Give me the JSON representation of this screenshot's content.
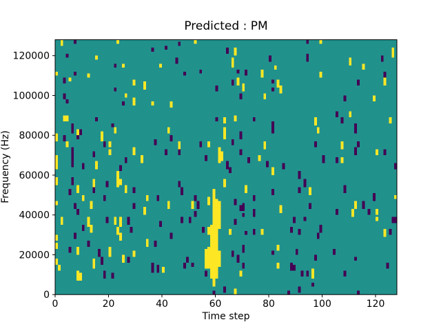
{
  "chart_data": {
    "type": "heatmap",
    "title": "Predicted : PM",
    "xlabel": "Time step",
    "ylabel": "Frequency (Hz)",
    "x_range": [
      0,
      128
    ],
    "y_range_hz": [
      0,
      128000
    ],
    "n_time_steps": 128,
    "n_freq_bins": 128,
    "hz_per_bin": 1000,
    "x_ticks": [
      0,
      20,
      40,
      60,
      80,
      100,
      120
    ],
    "y_ticks": [
      0,
      20000,
      40000,
      60000,
      80000,
      100000,
      120000
    ],
    "grid": false,
    "legend": "none",
    "colors": {
      "background_mid": "#21918c",
      "high": "#fde725",
      "low": "#440154",
      "frame": "#000000",
      "text": "#000000"
    },
    "cells_format": "[time_step, freq_bin_start, freq_bin_end, y=yellow|p=purple]",
    "cells": [
      [
        2,
        125,
        127,
        "y"
      ],
      [
        7,
        126,
        127,
        "p"
      ],
      [
        23,
        126,
        127,
        "y"
      ],
      [
        36,
        122,
        123,
        "p"
      ],
      [
        41,
        123,
        124,
        "p"
      ],
      [
        4,
        119,
        120,
        "p"
      ],
      [
        15,
        118,
        119,
        "y"
      ],
      [
        22,
        114,
        115,
        "p"
      ],
      [
        25,
        114,
        115,
        "y"
      ],
      [
        39,
        114,
        115,
        "y"
      ],
      [
        0,
        110,
        111,
        "y"
      ],
      [
        7,
        110,
        111,
        "p"
      ],
      [
        12,
        109,
        110,
        "y"
      ],
      [
        3,
        106,
        108,
        "p"
      ],
      [
        5,
        107,
        108,
        "y"
      ],
      [
        29,
        105,
        107,
        "y"
      ],
      [
        33,
        103,
        106,
        "y"
      ],
      [
        22,
        102,
        103,
        "p"
      ],
      [
        3,
        98,
        100,
        "p"
      ],
      [
        26,
        99,
        100,
        "y"
      ],
      [
        29,
        95,
        98,
        "y"
      ],
      [
        25,
        95,
        96,
        "p"
      ],
      [
        36,
        95,
        96,
        "y"
      ],
      [
        4,
        96,
        97,
        "p"
      ],
      [
        43,
        94,
        96,
        "y"
      ],
      [
        3,
        87,
        89,
        "y"
      ],
      [
        4,
        87,
        89,
        "y"
      ],
      [
        15,
        87,
        88,
        "p"
      ],
      [
        6,
        84,
        85,
        "p"
      ],
      [
        21,
        84,
        85,
        "p"
      ],
      [
        46,
        125,
        126,
        "p"
      ],
      [
        52,
        126,
        127,
        "y"
      ],
      [
        64,
        121,
        123,
        "p"
      ],
      [
        67,
        120,
        123,
        "y"
      ],
      [
        45,
        116,
        118,
        "p"
      ],
      [
        66,
        114,
        118,
        "y"
      ],
      [
        80,
        117,
        119,
        "p"
      ],
      [
        82,
        113,
        114,
        "y"
      ],
      [
        48,
        110,
        111,
        "p"
      ],
      [
        54,
        111,
        112,
        "p"
      ],
      [
        68,
        111,
        112,
        "p"
      ],
      [
        77,
        109,
        112,
        "y"
      ],
      [
        71,
        110,
        112,
        "p"
      ],
      [
        66,
        105,
        107,
        "p"
      ],
      [
        68,
        105,
        108,
        "y"
      ],
      [
        81,
        106,
        107,
        "p"
      ],
      [
        83,
        104,
        107,
        "y"
      ],
      [
        81,
        102,
        103,
        "p"
      ],
      [
        84,
        101,
        104,
        "y"
      ],
      [
        60,
        102,
        104,
        "p"
      ],
      [
        70,
        102,
        105,
        "y"
      ],
      [
        69,
        98,
        100,
        "p"
      ],
      [
        78,
        98,
        100,
        "y"
      ],
      [
        60,
        87,
        88,
        "p"
      ],
      [
        63,
        86,
        88,
        "y"
      ],
      [
        67,
        87,
        89,
        "y"
      ],
      [
        74,
        87,
        88,
        "p"
      ],
      [
        81,
        84,
        86,
        "p"
      ],
      [
        94,
        126,
        127,
        "p"
      ],
      [
        99,
        126,
        127,
        "y"
      ],
      [
        126,
        119,
        123,
        "y"
      ],
      [
        94,
        117,
        120,
        "p"
      ],
      [
        110,
        115,
        118,
        "y"
      ],
      [
        122,
        117,
        119,
        "p"
      ],
      [
        115,
        113,
        115,
        "y"
      ],
      [
        99,
        109,
        111,
        "y"
      ],
      [
        123,
        109,
        111,
        "p"
      ],
      [
        113,
        105,
        107,
        "p"
      ],
      [
        123,
        105,
        108,
        "y"
      ],
      [
        108,
        97,
        99,
        "p"
      ],
      [
        119,
        97,
        99,
        "y"
      ],
      [
        105,
        89,
        91,
        "p"
      ],
      [
        107,
        86,
        88,
        "p"
      ],
      [
        110,
        89,
        91,
        "y"
      ],
      [
        97,
        85,
        88,
        "y"
      ],
      [
        125,
        86,
        88,
        "y"
      ],
      [
        112,
        84,
        85,
        "p"
      ],
      [
        6,
        81,
        83,
        "p"
      ],
      [
        8,
        80,
        82,
        "y"
      ],
      [
        9,
        80,
        82,
        "p"
      ],
      [
        22,
        81,
        83,
        "y"
      ],
      [
        0,
        77,
        80,
        "y"
      ],
      [
        3,
        77,
        79,
        "p"
      ],
      [
        4,
        74,
        76,
        "y"
      ],
      [
        8,
        78,
        79,
        "p"
      ],
      [
        17,
        77,
        81,
        "y"
      ],
      [
        18,
        74,
        76,
        "p"
      ],
      [
        20,
        74,
        76,
        "y"
      ],
      [
        37,
        75,
        77,
        "p"
      ],
      [
        42,
        81,
        83,
        "y"
      ],
      [
        43,
        77,
        79,
        "p"
      ],
      [
        6,
        64,
        73,
        "p"
      ],
      [
        0,
        63,
        69,
        "y"
      ],
      [
        14,
        69,
        71,
        "p"
      ],
      [
        20,
        70,
        72,
        "y"
      ],
      [
        29,
        70,
        73,
        "y"
      ],
      [
        26,
        66,
        68,
        "p"
      ],
      [
        32,
        66,
        69,
        "y"
      ],
      [
        41,
        70,
        72,
        "p"
      ],
      [
        10,
        63,
        65,
        "p"
      ],
      [
        15,
        63,
        66,
        "y"
      ],
      [
        24,
        62,
        64,
        "p"
      ],
      [
        23,
        59,
        61,
        "y"
      ],
      [
        0,
        55,
        58,
        "y"
      ],
      [
        6,
        55,
        58,
        "p"
      ],
      [
        14,
        54,
        57,
        "y"
      ],
      [
        23,
        54,
        58,
        "y"
      ],
      [
        24,
        55,
        57,
        "y"
      ],
      [
        19,
        54,
        56,
        "p"
      ],
      [
        26,
        51,
        54,
        "y"
      ],
      [
        29,
        51,
        53,
        "p"
      ],
      [
        8,
        51,
        54,
        "y"
      ],
      [
        5,
        50,
        52,
        "p"
      ],
      [
        14,
        51,
        53,
        "p"
      ],
      [
        10,
        47,
        49,
        "y"
      ],
      [
        18,
        47,
        49,
        "p"
      ],
      [
        34,
        47,
        49,
        "y"
      ],
      [
        38,
        47,
        49,
        "p"
      ],
      [
        42,
        43,
        46,
        "y"
      ],
      [
        29,
        43,
        45,
        "p"
      ],
      [
        13,
        43,
        46,
        "y"
      ],
      [
        7,
        43,
        45,
        "p"
      ],
      [
        8,
        40,
        42,
        "p"
      ],
      [
        33,
        40,
        43,
        "y"
      ],
      [
        0,
        45,
        46,
        "y"
      ],
      [
        63,
        78,
        83,
        "y"
      ],
      [
        81,
        81,
        83,
        "p"
      ],
      [
        46,
        73,
        76,
        "y"
      ],
      [
        54,
        74,
        76,
        "p"
      ],
      [
        57,
        74,
        76,
        "y"
      ],
      [
        69,
        78,
        81,
        "p"
      ],
      [
        66,
        75,
        77,
        "p"
      ],
      [
        78,
        73,
        76,
        "y"
      ],
      [
        46,
        70,
        72,
        "p"
      ],
      [
        61,
        66,
        73,
        "y"
      ],
      [
        62,
        67,
        71,
        "y"
      ],
      [
        56,
        67,
        69,
        "p"
      ],
      [
        69,
        70,
        72,
        "p"
      ],
      [
        72,
        66,
        68,
        "p"
      ],
      [
        76,
        67,
        69,
        "y"
      ],
      [
        79,
        64,
        66,
        "p"
      ],
      [
        64,
        63,
        66,
        "p"
      ],
      [
        65,
        61,
        63,
        "p"
      ],
      [
        81,
        60,
        63,
        "y"
      ],
      [
        85,
        63,
        65,
        "p"
      ],
      [
        63,
        54,
        57,
        "y"
      ],
      [
        46,
        54,
        56,
        "p"
      ],
      [
        47,
        50,
        53,
        "p"
      ],
      [
        71,
        51,
        54,
        "y"
      ],
      [
        74,
        47,
        49,
        "p"
      ],
      [
        81,
        50,
        52,
        "p"
      ],
      [
        59,
        48,
        52,
        "y"
      ],
      [
        52,
        47,
        49,
        "p"
      ],
      [
        53,
        43,
        46,
        "p"
      ],
      [
        51,
        43,
        46,
        "y"
      ],
      [
        57,
        45,
        48,
        "y"
      ],
      [
        70,
        42,
        45,
        "p"
      ],
      [
        84,
        41,
        44,
        "y"
      ],
      [
        74,
        39,
        42,
        "p"
      ],
      [
        52,
        39,
        41,
        "p"
      ],
      [
        98,
        81,
        83,
        "y"
      ],
      [
        112,
        81,
        83,
        "p"
      ],
      [
        97,
        74,
        76,
        "p"
      ],
      [
        107,
        73,
        76,
        "y"
      ],
      [
        113,
        74,
        76,
        "p"
      ],
      [
        112,
        70,
        73,
        "p"
      ],
      [
        120,
        70,
        72,
        "y"
      ],
      [
        123,
        70,
        72,
        "p"
      ],
      [
        100,
        66,
        69,
        "p"
      ],
      [
        105,
        66,
        68,
        "p"
      ],
      [
        107,
        66,
        68,
        "y"
      ],
      [
        91,
        58,
        61,
        "p"
      ],
      [
        93,
        54,
        57,
        "p"
      ],
      [
        91,
        51,
        53,
        "p"
      ],
      [
        95,
        50,
        53,
        "y"
      ],
      [
        108,
        51,
        54,
        "p"
      ],
      [
        119,
        47,
        50,
        "p"
      ],
      [
        115,
        43,
        46,
        "p"
      ],
      [
        112,
        43,
        46,
        "y"
      ],
      [
        95,
        43,
        45,
        "p"
      ],
      [
        117,
        40,
        42,
        "p"
      ],
      [
        120,
        40,
        42,
        "y"
      ],
      [
        105,
        40,
        42,
        "p"
      ],
      [
        111,
        39,
        42,
        "y"
      ],
      [
        127,
        63,
        65,
        "p"
      ],
      [
        127,
        48,
        49,
        "y"
      ],
      [
        2,
        35,
        38,
        "y"
      ],
      [
        12,
        34,
        38,
        "y"
      ],
      [
        19,
        36,
        38,
        "p"
      ],
      [
        22,
        35,
        38,
        "y"
      ],
      [
        24,
        34,
        38,
        "y"
      ],
      [
        27,
        35,
        38,
        "p"
      ],
      [
        39,
        34,
        36,
        "p"
      ],
      [
        10,
        32,
        34,
        "p"
      ],
      [
        13,
        31,
        34,
        "y"
      ],
      [
        23,
        30,
        33,
        "y"
      ],
      [
        28,
        31,
        33,
        "p"
      ],
      [
        7,
        28,
        30,
        "p"
      ],
      [
        24,
        27,
        30,
        "y"
      ],
      [
        43,
        28,
        30,
        "p"
      ],
      [
        34,
        24,
        27,
        "y"
      ],
      [
        37,
        24,
        26,
        "p"
      ],
      [
        0,
        27,
        29,
        "y"
      ],
      [
        0,
        23,
        25,
        "y"
      ],
      [
        5,
        21,
        23,
        "p"
      ],
      [
        8,
        20,
        23,
        "y"
      ],
      [
        12,
        24,
        26,
        "p"
      ],
      [
        20,
        19,
        23,
        "y"
      ],
      [
        16,
        19,
        22,
        "p"
      ],
      [
        25,
        16,
        19,
        "y"
      ],
      [
        17,
        15,
        18,
        "p"
      ],
      [
        14,
        13,
        17,
        "y"
      ],
      [
        27,
        16,
        18,
        "p"
      ],
      [
        29,
        19,
        21,
        "y"
      ],
      [
        1,
        12,
        14,
        "y"
      ],
      [
        0,
        15,
        17,
        "y"
      ],
      [
        36,
        11,
        15,
        "p"
      ],
      [
        38,
        11,
        14,
        "p"
      ],
      [
        40,
        11,
        13,
        "y"
      ],
      [
        8,
        7,
        11,
        "y"
      ],
      [
        9,
        7,
        10,
        "y"
      ],
      [
        18,
        8,
        11,
        "p"
      ],
      [
        21,
        8,
        10,
        "p"
      ],
      [
        47,
        36,
        38,
        "p"
      ],
      [
        50,
        36,
        38,
        "p"
      ],
      [
        57,
        30,
        33,
        "y"
      ],
      [
        58,
        26,
        34,
        "y"
      ],
      [
        59,
        24,
        47,
        "y"
      ],
      [
        60,
        23,
        47,
        "y"
      ],
      [
        61,
        33,
        46,
        "y"
      ],
      [
        56,
        13,
        22,
        "y"
      ],
      [
        57,
        13,
        23,
        "y"
      ],
      [
        58,
        8,
        25,
        "y"
      ],
      [
        59,
        4,
        23,
        "y"
      ],
      [
        60,
        8,
        22,
        "y"
      ],
      [
        61,
        14,
        21,
        "y"
      ],
      [
        67,
        45,
        47,
        "p"
      ],
      [
        69,
        42,
        44,
        "p"
      ],
      [
        70,
        39,
        40,
        "p"
      ],
      [
        67,
        35,
        37,
        "p"
      ],
      [
        55,
        31,
        33,
        "p"
      ],
      [
        65,
        30,
        32,
        "y"
      ],
      [
        71,
        30,
        31,
        "p"
      ],
      [
        74,
        30,
        32,
        "p"
      ],
      [
        77,
        30,
        32,
        "y"
      ],
      [
        70,
        21,
        24,
        "p"
      ],
      [
        49,
        16,
        18,
        "p"
      ],
      [
        48,
        13,
        15,
        "p"
      ],
      [
        51,
        14,
        15,
        "p"
      ],
      [
        56,
        9,
        11,
        "p"
      ],
      [
        66,
        19,
        21,
        "p"
      ],
      [
        68,
        16,
        19,
        "p"
      ],
      [
        70,
        13,
        15,
        "p"
      ],
      [
        69,
        9,
        11,
        "y"
      ],
      [
        83,
        22,
        24,
        "y"
      ],
      [
        81,
        20,
        21,
        "p"
      ],
      [
        83,
        13,
        15,
        "y"
      ],
      [
        63,
        1,
        3,
        "p"
      ],
      [
        67,
        0,
        2,
        "y"
      ],
      [
        59,
        0,
        1,
        "p"
      ],
      [
        87,
        0,
        1,
        "p"
      ],
      [
        113,
        0,
        1,
        "p"
      ],
      [
        89,
        36,
        38,
        "p"
      ],
      [
        93,
        37,
        38,
        "p"
      ],
      [
        120,
        37,
        38,
        "y"
      ],
      [
        126,
        36,
        38,
        "p"
      ],
      [
        127,
        36,
        38,
        "p"
      ],
      [
        99,
        31,
        34,
        "p"
      ],
      [
        91,
        30,
        32,
        "p"
      ],
      [
        88,
        31,
        33,
        "p"
      ],
      [
        123,
        29,
        32,
        "y"
      ],
      [
        125,
        30,
        32,
        "p"
      ],
      [
        98,
        28,
        30,
        "p"
      ],
      [
        90,
        20,
        22,
        "p"
      ],
      [
        97,
        17,
        19,
        "p"
      ],
      [
        104,
        20,
        22,
        "p"
      ],
      [
        112,
        17,
        18,
        "p"
      ],
      [
        124,
        13,
        15,
        "p"
      ],
      [
        88,
        12,
        15,
        "p"
      ],
      [
        89,
        12,
        14,
        "p"
      ],
      [
        92,
        9,
        11,
        "p"
      ],
      [
        94,
        9,
        11,
        "p"
      ],
      [
        96,
        8,
        12,
        "y"
      ],
      [
        108,
        9,
        11,
        "p"
      ],
      [
        96,
        4,
        5,
        "p"
      ],
      [
        91,
        1,
        3,
        "p"
      ]
    ]
  }
}
